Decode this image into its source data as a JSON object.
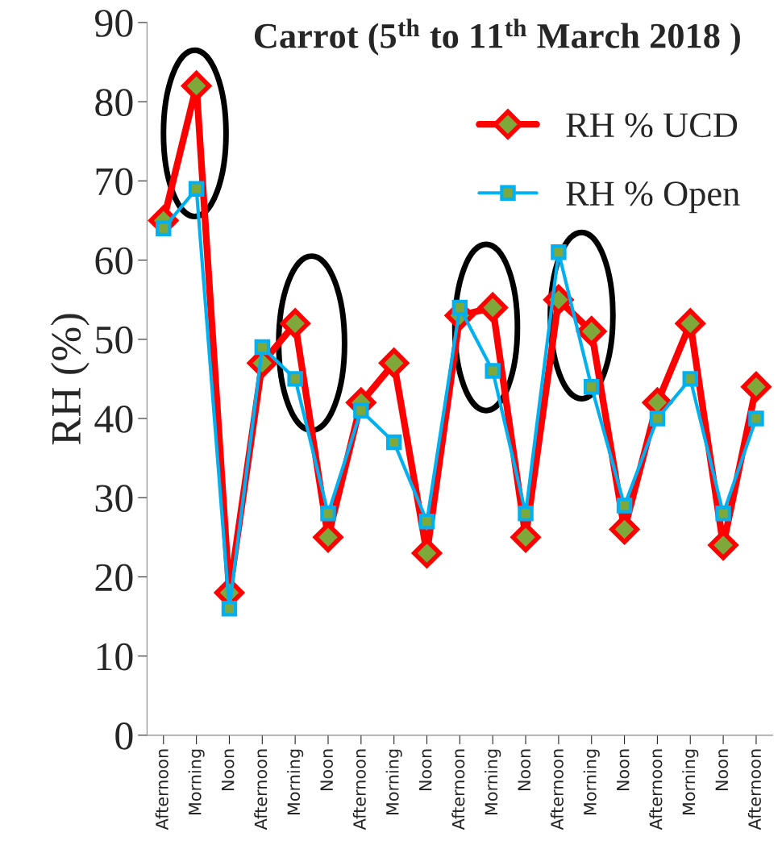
{
  "chart_data": {
    "type": "line",
    "title": "Carrot (5$^{th}$ to 11$^{th}$ March 2018 )",
    "ylabel": "RH (%)",
    "categories": [
      "Afternoon",
      "Morning",
      "Noon",
      "Afternoon",
      "Morning",
      "Noon",
      "Afternoon",
      "Morning",
      "Noon",
      "Afternoon",
      "Morning",
      "Noon",
      "Afternoon",
      "Morning",
      "Noon",
      "Afternoon",
      "Morning",
      "Noon",
      "Afternoon"
    ],
    "series": [
      {
        "name": "RH % UCD",
        "color": "#ff0000",
        "marker": "diamond",
        "values": [
          65,
          82,
          18,
          47,
          52,
          25,
          42,
          47,
          23,
          53,
          54,
          25,
          55,
          51,
          26,
          42,
          52,
          24,
          44
        ]
      },
      {
        "name": "RH % Open",
        "color": "#00b0f0",
        "marker": "square",
        "values": [
          64,
          69,
          16,
          49,
          45,
          28,
          41,
          37,
          27,
          54,
          46,
          28,
          61,
          44,
          29,
          40,
          45,
          28,
          40
        ]
      }
    ],
    "ylim": [
      0,
      90
    ],
    "yticks": [
      0,
      10,
      20,
      30,
      40,
      50,
      60,
      70,
      80,
      90
    ],
    "grid": false,
    "legend": "top right"
  }
}
